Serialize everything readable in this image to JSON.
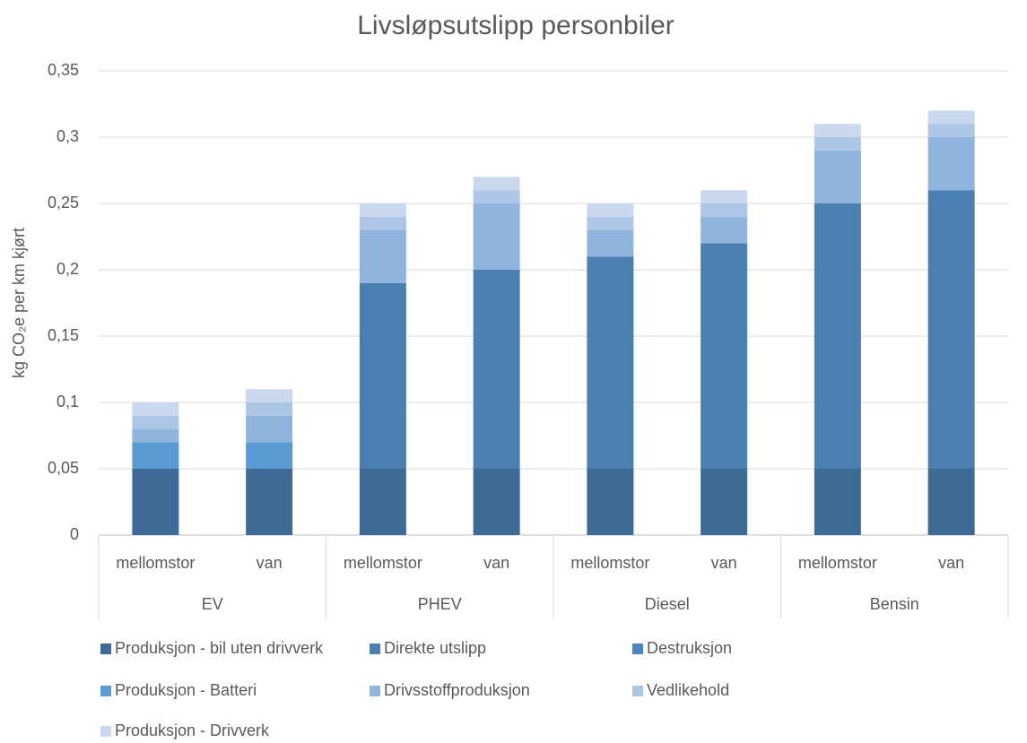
{
  "chart_data": {
    "type": "stacked_bar",
    "title": "Livsløpsutslipp personbiler",
    "y_label": "kg CO₂e per km kjørt",
    "categories": [
      "mellomstor",
      "van",
      "mellomstor",
      "van",
      "mellomstor",
      "van",
      "mellomstor",
      "van"
    ],
    "groups": [
      "EV",
      "PHEV",
      "Diesel",
      "Bensin"
    ],
    "series": [
      {
        "name": "Produksjon - bil uten drivverk",
        "color": "#3e6b96",
        "values": [
          0.05,
          0.05,
          0.05,
          0.05,
          0.05,
          0.05,
          0.05,
          0.05
        ]
      },
      {
        "name": "Direkte utslipp",
        "color": "#4a7fb0",
        "values": [
          0,
          0,
          0.14,
          0.15,
          0.16,
          0.17,
          0.2,
          0.21
        ]
      },
      {
        "name": "Destruksjon",
        "color": "#4f86c1",
        "values": [
          0,
          0,
          0,
          0,
          0,
          0,
          0,
          0
        ]
      },
      {
        "name": "Produksjon - Batteri",
        "color": "#5b9bd5",
        "values": [
          0.02,
          0.02,
          0,
          0,
          0,
          0,
          0,
          0
        ]
      },
      {
        "name": "Drivsstoffproduksjon",
        "color": "#8fb4de",
        "values": [
          0.01,
          0.02,
          0.04,
          0.05,
          0.02,
          0.02,
          0.04,
          0.04
        ]
      },
      {
        "name": "Vedlikehold",
        "color": "#adc6e6",
        "values": [
          0.01,
          0.01,
          0.01,
          0.01,
          0.01,
          0.01,
          0.01,
          0.01
        ]
      },
      {
        "name": "Produksjon - Drivverk",
        "color": "#c9d8ee",
        "values": [
          0.01,
          0.01,
          0.01,
          0.01,
          0.01,
          0.01,
          0.01,
          0.01
        ]
      }
    ],
    "ylim": [
      0,
      0.35
    ],
    "yticks": [
      0,
      {
        "value": 0.05,
        "label": "0,05"
      },
      {
        "value": 0.1,
        "label": "0,1"
      },
      {
        "value": 0.15,
        "label": "0,15"
      },
      {
        "value": 0.2,
        "label": "0,2"
      },
      {
        "value": 0.25,
        "label": "0,25"
      },
      {
        "value": 0.3,
        "label": "0,3"
      },
      {
        "value": 0.35,
        "label": "0,35"
      }
    ],
    "grid": true
  }
}
